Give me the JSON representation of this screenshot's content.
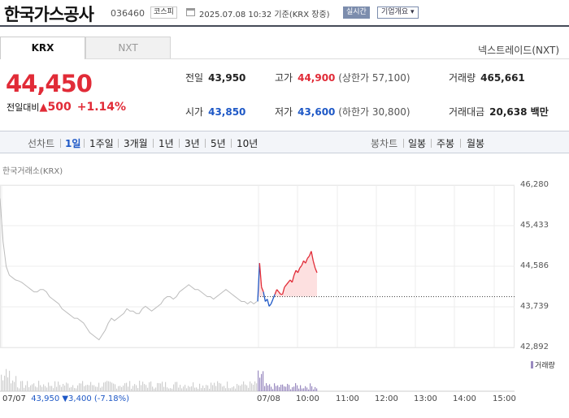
{
  "header": {
    "name": "한국가스공사",
    "code": "036460",
    "market": "코스피",
    "datetime": "2025.07.08 10:32  기준(KRX 장중)",
    "realtime": "실시간",
    "corp_info": "기업개요 ▾"
  },
  "tabs": [
    "KRX",
    "NXT"
  ],
  "nextrade": "넥스트레이드(NXT)",
  "quote": {
    "price": "44,450",
    "change_label": "전일대비",
    "change": "500",
    "change_pct": "+1.14%",
    "up_arrow": "▲"
  },
  "stats": {
    "prev": {
      "label": "전일",
      "value": "43,950"
    },
    "high": {
      "label": "고가",
      "value": "44,900",
      "sub": "(상한가 57,100)"
    },
    "volume": {
      "label": "거래량",
      "value": "465,661"
    },
    "open": {
      "label": "시가",
      "value": "43,850"
    },
    "low": {
      "label": "저가",
      "value": "43,600",
      "sub": "(하한가 30,800)"
    },
    "amount": {
      "label": "거래대금",
      "value": "20,638 백만"
    }
  },
  "toolbar": {
    "line_label": "선차트",
    "periods": [
      "1일",
      "1주일",
      "3개월",
      "1년",
      "3년",
      "5년",
      "10년"
    ],
    "candle_label": "봉차트",
    "candles": [
      "일봉",
      "주봉",
      "월봉"
    ]
  },
  "chart_source": "한국거래소(KRX)",
  "chart_data": {
    "type": "line",
    "yticks": [
      "46,280",
      "45,433",
      "44,586",
      "43,739",
      "42,892"
    ],
    "ylim": [
      42892,
      46280
    ],
    "xticks": [
      "07/07",
      "07/08",
      "10:00",
      "11:00",
      "12:00",
      "13:00",
      "14:00",
      "15:00"
    ],
    "reference_price": 43950,
    "series": [
      {
        "values": [
          46000,
          45100,
          44580,
          44400,
          44350,
          44300,
          44280,
          44250,
          44200,
          44150,
          44100,
          44050,
          44050,
          44100,
          44100,
          44050,
          43950,
          43900,
          43850,
          43800,
          43700,
          43650,
          43600,
          43550,
          43500,
          43500,
          43450,
          43400,
          43300,
          43200,
          43150,
          43100,
          43050,
          43150,
          43250,
          43400,
          43500,
          43450,
          43500,
          43550,
          43600,
          43700,
          43650,
          43650,
          43600,
          43600,
          43700,
          43750,
          43700,
          43650,
          43700,
          43750,
          43800,
          43900,
          43950,
          43950,
          43900,
          43950,
          44050,
          44100,
          44150,
          44200,
          44150,
          44100,
          44100,
          44050,
          44000,
          43950,
          43950,
          43900,
          43950,
          44000,
          44050,
          44100,
          44050,
          44000,
          43950,
          43900,
          43850,
          43850,
          43800,
          43850,
          43800,
          43850
        ]
      },
      {
        "values": [
          43850,
          44650,
          44150,
          44050,
          43850,
          43900,
          43750,
          43800,
          43900,
          44000,
          44100,
          44050,
          44000,
          44000,
          44150,
          44200,
          44250,
          44300,
          44250,
          44400,
          44500,
          44450,
          44550,
          44600,
          44700,
          44650,
          44750,
          44800,
          44900,
          44700,
          44550,
          44450
        ]
      }
    ]
  }
}
